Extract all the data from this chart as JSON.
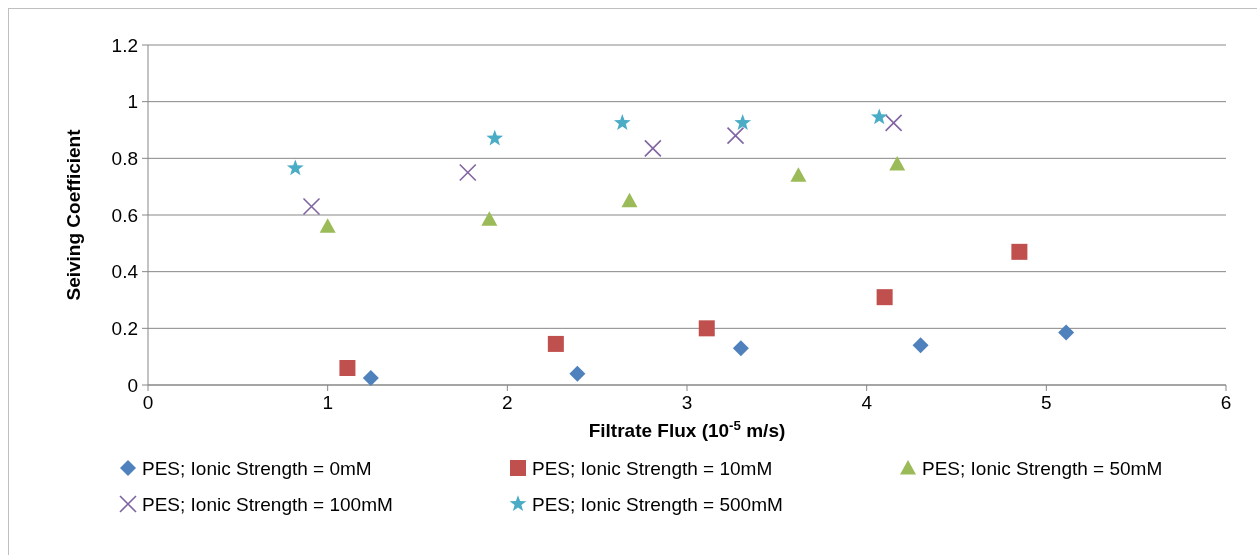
{
  "chart_data": {
    "type": "scatter",
    "xlabel": "Filtrate Flux (10$^{-5}$ m/s)",
    "ylabel": "Seiving Coefficient",
    "xlim": [
      0,
      6
    ],
    "xticks": [
      0,
      1,
      2,
      3,
      4,
      5,
      6
    ],
    "ylim": [
      0,
      1.2
    ],
    "yticks": [
      0,
      0.2,
      0.4,
      0.6,
      0.8,
      1,
      1.2
    ],
    "grid": "y",
    "legend": "bottom",
    "series": [
      {
        "name": "PES; Ionic Strength = 0mM",
        "color": "#4f81bd",
        "marker": "diamond",
        "x": [
          1.24,
          2.39,
          3.3,
          4.3,
          5.11
        ],
        "values": [
          0.025,
          0.04,
          0.13,
          0.14,
          0.185
        ]
      },
      {
        "name": "PES; Ionic Strength = 10mM",
        "color": "#c0504d",
        "marker": "square",
        "x": [
          1.11,
          2.27,
          3.11,
          4.1,
          4.85
        ],
        "values": [
          0.06,
          0.145,
          0.2,
          0.31,
          0.47
        ]
      },
      {
        "name": "PES; Ionic Strength = 50mM",
        "color": "#9bbb59",
        "marker": "triangle",
        "x": [
          1.0,
          1.9,
          2.68,
          3.62,
          4.17
        ],
        "values": [
          0.56,
          0.585,
          0.65,
          0.74,
          0.78
        ]
      },
      {
        "name": "PES; Ionic Strength = 100mM",
        "color": "#8064a2",
        "marker": "cross",
        "x": [
          0.91,
          1.78,
          2.81,
          3.27,
          4.15
        ],
        "values": [
          0.63,
          0.75,
          0.835,
          0.88,
          0.925
        ]
      },
      {
        "name": "PES; Ionic Strength = 500mM",
        "color": "#4bacc6",
        "marker": "star",
        "x": [
          0.82,
          1.93,
          2.64,
          3.31,
          4.07
        ],
        "values": [
          0.765,
          0.87,
          0.925,
          0.925,
          0.945
        ]
      }
    ]
  }
}
